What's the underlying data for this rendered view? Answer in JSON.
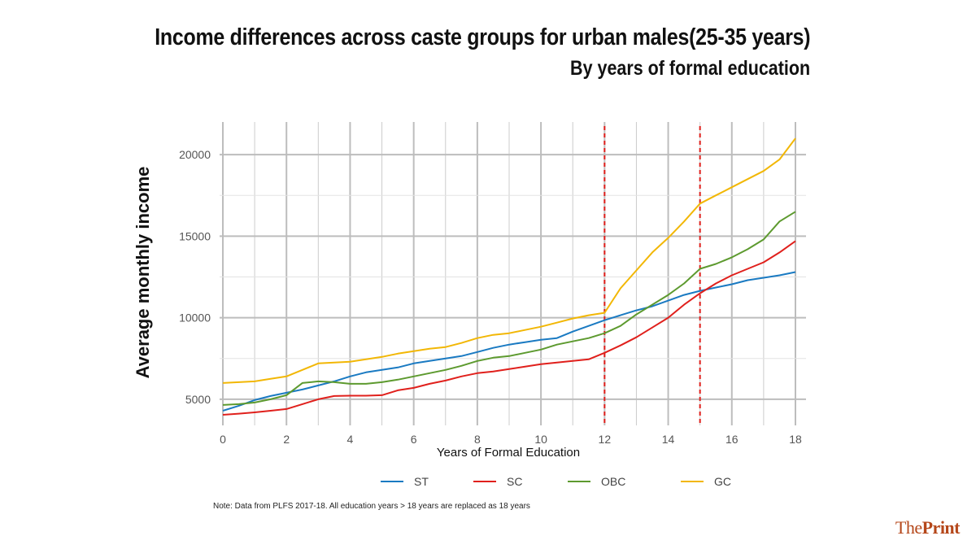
{
  "header": {
    "title": "Income differences across caste groups for urban males(25-35 years)",
    "subtitle": "By years of formal education"
  },
  "note": "Note: Data from PLFS 2017-18. All education years > 18 years are replaced as 18 years",
  "brand": {
    "part1": "The",
    "part2": "Print"
  },
  "chart_data": {
    "type": "line",
    "xlabel": "Years of Formal Education",
    "ylabel": "Average monthly income",
    "xlim": [
      0,
      18
    ],
    "ylim": [
      3400,
      22000
    ],
    "xticks": [
      0,
      2,
      4,
      6,
      8,
      10,
      12,
      14,
      16,
      18
    ],
    "yticks": [
      5000,
      10000,
      15000,
      20000
    ],
    "grid": true,
    "legend_position": "bottom",
    "vertical_reference_lines": [
      {
        "x": 12,
        "color": "#e0201c",
        "style": "dashed"
      },
      {
        "x": 15,
        "color": "#e0201c",
        "style": "dashed"
      }
    ],
    "series": [
      {
        "name": "ST",
        "color": "#1a7ac2",
        "points": [
          [
            0,
            4300
          ],
          [
            0.5,
            4600
          ],
          [
            1,
            4950
          ],
          [
            1.5,
            5200
          ],
          [
            2,
            5400
          ],
          [
            2.5,
            5600
          ],
          [
            3,
            5850
          ],
          [
            3.5,
            6100
          ],
          [
            4,
            6400
          ],
          [
            4.5,
            6650
          ],
          [
            5,
            6800
          ],
          [
            5.5,
            6950
          ],
          [
            6,
            7200
          ],
          [
            6.5,
            7350
          ],
          [
            7,
            7500
          ],
          [
            7.5,
            7650
          ],
          [
            8,
            7900
          ],
          [
            8.5,
            8150
          ],
          [
            9,
            8350
          ],
          [
            9.5,
            8500
          ],
          [
            10,
            8650
          ],
          [
            10.5,
            8750
          ],
          [
            11,
            9150
          ],
          [
            11.5,
            9500
          ],
          [
            12,
            9850
          ],
          [
            12.5,
            10150
          ],
          [
            13,
            10450
          ],
          [
            13.5,
            10700
          ],
          [
            14,
            11050
          ],
          [
            14.5,
            11400
          ],
          [
            15,
            11650
          ],
          [
            15.5,
            11850
          ],
          [
            16,
            12050
          ],
          [
            16.5,
            12300
          ],
          [
            17,
            12450
          ],
          [
            17.5,
            12600
          ],
          [
            18,
            12800
          ]
        ]
      },
      {
        "name": "SC",
        "color": "#e0201c",
        "points": [
          [
            0,
            4050
          ],
          [
            0.5,
            4120
          ],
          [
            1,
            4200
          ],
          [
            1.5,
            4300
          ],
          [
            2,
            4400
          ],
          [
            2.5,
            4700
          ],
          [
            3,
            5000
          ],
          [
            3.5,
            5200
          ],
          [
            4,
            5220
          ],
          [
            4.5,
            5220
          ],
          [
            5,
            5250
          ],
          [
            5.5,
            5550
          ],
          [
            6,
            5700
          ],
          [
            6.5,
            5950
          ],
          [
            7,
            6150
          ],
          [
            7.5,
            6400
          ],
          [
            8,
            6600
          ],
          [
            8.5,
            6700
          ],
          [
            9,
            6850
          ],
          [
            9.5,
            7000
          ],
          [
            10,
            7150
          ],
          [
            10.5,
            7250
          ],
          [
            11,
            7350
          ],
          [
            11.5,
            7450
          ],
          [
            12,
            7850
          ],
          [
            12.5,
            8300
          ],
          [
            13,
            8800
          ],
          [
            13.5,
            9400
          ],
          [
            14,
            10000
          ],
          [
            14.5,
            10800
          ],
          [
            15,
            11500
          ],
          [
            15.5,
            12100
          ],
          [
            16,
            12600
          ],
          [
            16.5,
            13000
          ],
          [
            17,
            13400
          ],
          [
            17.5,
            14000
          ],
          [
            18,
            14700
          ]
        ]
      },
      {
        "name": "OBC",
        "color": "#5d9a2f",
        "points": [
          [
            0,
            4650
          ],
          [
            0.5,
            4700
          ],
          [
            1,
            4800
          ],
          [
            1.5,
            5000
          ],
          [
            2,
            5250
          ],
          [
            2.5,
            6000
          ],
          [
            3,
            6100
          ],
          [
            3.5,
            6050
          ],
          [
            4,
            5950
          ],
          [
            4.5,
            5950
          ],
          [
            5,
            6050
          ],
          [
            5.5,
            6200
          ],
          [
            6,
            6400
          ],
          [
            6.5,
            6600
          ],
          [
            7,
            6800
          ],
          [
            7.5,
            7050
          ],
          [
            8,
            7350
          ],
          [
            8.5,
            7550
          ],
          [
            9,
            7650
          ],
          [
            9.5,
            7850
          ],
          [
            10,
            8050
          ],
          [
            10.5,
            8350
          ],
          [
            11,
            8550
          ],
          [
            11.5,
            8750
          ],
          [
            12,
            9050
          ],
          [
            12.5,
            9500
          ],
          [
            13,
            10200
          ],
          [
            13.5,
            10800
          ],
          [
            14,
            11400
          ],
          [
            14.5,
            12100
          ],
          [
            15,
            13000
          ],
          [
            15.5,
            13300
          ],
          [
            16,
            13700
          ],
          [
            16.5,
            14200
          ],
          [
            17,
            14800
          ],
          [
            17.5,
            15900
          ],
          [
            18,
            16500
          ]
        ]
      },
      {
        "name": "GC",
        "color": "#f2b705",
        "points": [
          [
            0,
            6000
          ],
          [
            0.5,
            6050
          ],
          [
            1,
            6100
          ],
          [
            1.5,
            6250
          ],
          [
            2,
            6400
          ],
          [
            2.5,
            6800
          ],
          [
            3,
            7200
          ],
          [
            3.5,
            7250
          ],
          [
            4,
            7300
          ],
          [
            4.5,
            7450
          ],
          [
            5,
            7600
          ],
          [
            5.5,
            7800
          ],
          [
            6,
            7950
          ],
          [
            6.5,
            8100
          ],
          [
            7,
            8200
          ],
          [
            7.5,
            8450
          ],
          [
            8,
            8750
          ],
          [
            8.5,
            8950
          ],
          [
            9,
            9050
          ],
          [
            9.5,
            9250
          ],
          [
            10,
            9450
          ],
          [
            10.5,
            9700
          ],
          [
            11,
            9950
          ],
          [
            11.5,
            10150
          ],
          [
            12,
            10300
          ],
          [
            12.5,
            11800
          ],
          [
            13,
            12900
          ],
          [
            13.5,
            14000
          ],
          [
            14,
            14900
          ],
          [
            14.5,
            15900
          ],
          [
            15,
            17000
          ],
          [
            15.5,
            17500
          ],
          [
            16,
            18000
          ],
          [
            16.5,
            18500
          ],
          [
            17,
            19000
          ],
          [
            17.5,
            19700
          ],
          [
            18,
            21000
          ]
        ]
      }
    ]
  }
}
